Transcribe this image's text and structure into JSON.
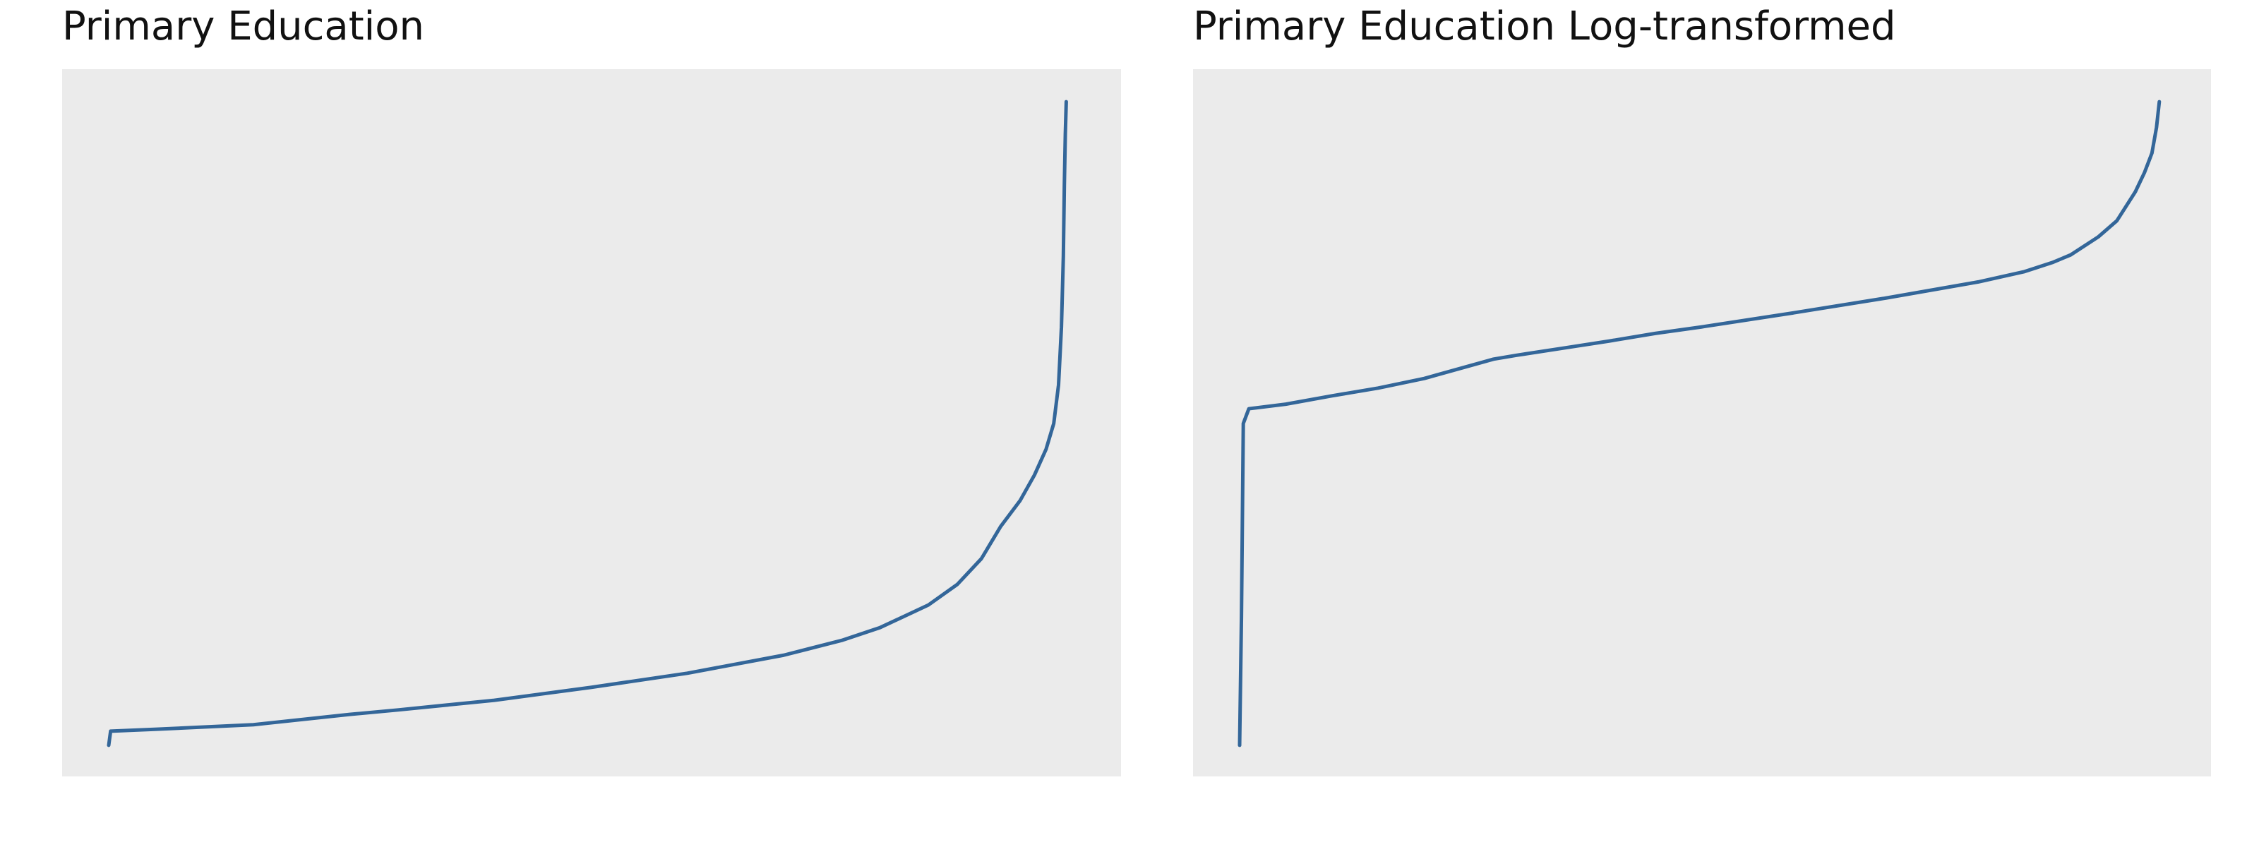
{
  "chart_data": [
    {
      "type": "line",
      "title": "Primary Education",
      "xlabel": "",
      "ylabel": "",
      "grid": false,
      "ticks_shown": false,
      "line_color": "#336699",
      "background_color": "#ebebeb",
      "xlim": [
        0,
        1000
      ],
      "ylim": [
        0,
        1000
      ],
      "x": [
        0,
        2,
        50,
        150,
        250,
        300,
        400,
        500,
        600,
        700,
        760,
        800,
        850,
        880,
        905,
        925,
        945,
        960,
        972,
        980,
        985,
        988,
        990,
        991,
        992,
        993
      ],
      "values": [
        0,
        22,
        25,
        32,
        48,
        55,
        70,
        90,
        112,
        140,
        163,
        183,
        218,
        250,
        290,
        340,
        380,
        420,
        460,
        500,
        560,
        650,
        760,
        870,
        950,
        1000
      ]
    },
    {
      "type": "line",
      "title": "Primary Education Log-transformed",
      "xlabel": "",
      "ylabel": "",
      "grid": false,
      "ticks_shown": false,
      "line_color": "#336699",
      "background_color": "#ebebeb",
      "xlim": [
        0,
        1000
      ],
      "ylim": [
        0,
        1000
      ],
      "x": [
        0,
        2,
        4,
        10,
        50,
        100,
        150,
        200,
        250,
        275,
        300,
        350,
        400,
        450,
        500,
        600,
        700,
        800,
        850,
        880,
        900,
        930,
        950,
        970,
        980,
        988,
        993,
        996
      ],
      "values": [
        0,
        200,
        500,
        523,
        530,
        543,
        555,
        570,
        590,
        600,
        606,
        617,
        628,
        640,
        650,
        672,
        695,
        720,
        736,
        750,
        762,
        790,
        815,
        860,
        890,
        920,
        960,
        1000
      ]
    }
  ]
}
